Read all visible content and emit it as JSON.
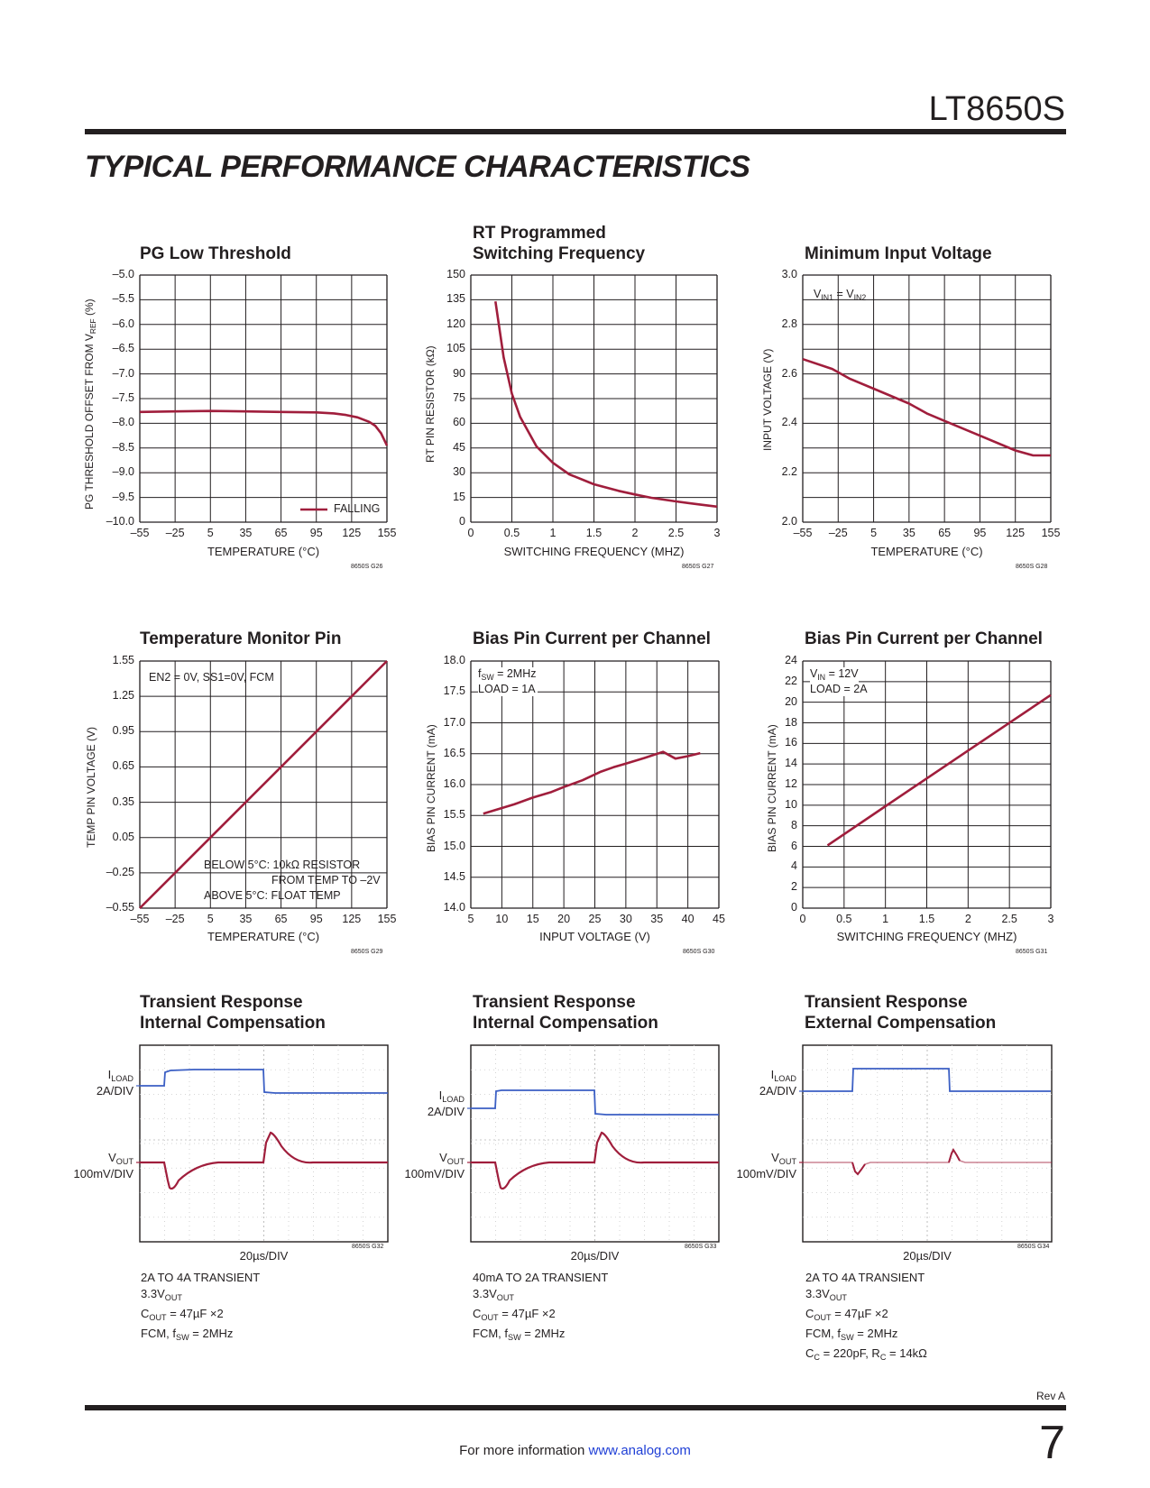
{
  "header": {
    "part_number": "LT8650S",
    "section_title": "TYPICAL PERFORMANCE CHARACTERISTICS"
  },
  "footer": {
    "rev": "Rev A",
    "page_number": "7",
    "more_info": "For more information",
    "link": "www.analog.com"
  },
  "colors": {
    "curve": "#a01e3c",
    "ch1": "#3b5fc4",
    "ch2": "#a01e3c",
    "grid": "#231f20"
  },
  "chart_data": [
    {
      "id": "g26",
      "type": "line",
      "title": "PG Low Threshold",
      "code": "8650S G26",
      "xlabel": "TEMPERATURE (°C)",
      "ylabel": "PG THRESHOLD OFFSET FROM  VREF (%)",
      "xlim": [
        -55,
        155
      ],
      "ylim": [
        -10.0,
        -5.0
      ],
      "xticks": [
        "–55",
        "–25",
        "5",
        "35",
        "65",
        "95",
        "125",
        "155"
      ],
      "yticks": [
        "–5.0",
        "–5.5",
        "–6.0",
        "–6.5",
        "–7.0",
        "–7.5",
        "–8.0",
        "–8.5",
        "–9.0",
        "–9.5",
        "–10.0"
      ],
      "legend": "FALLING",
      "series": [
        {
          "name": "FALLING",
          "x": [
            -55,
            -25,
            5,
            35,
            65,
            95,
            110,
            120,
            130,
            140,
            145,
            150,
            155
          ],
          "y": [
            -7.77,
            -7.76,
            -7.75,
            -7.76,
            -7.77,
            -7.78,
            -7.8,
            -7.83,
            -7.88,
            -7.97,
            -8.05,
            -8.2,
            -8.45
          ]
        }
      ]
    },
    {
      "id": "g27",
      "type": "line",
      "title": "RT Programmed Switching Frequency",
      "code": "8650S G27",
      "xlabel": "SWITCHING FREQUENCY (MHZ)",
      "ylabel": "RT PIN RESISTOR (kΩ)",
      "xlim": [
        0,
        3
      ],
      "ylim": [
        0,
        150
      ],
      "xticks": [
        "0",
        "0.5",
        "1",
        "1.5",
        "2",
        "2.5",
        "3"
      ],
      "yticks": [
        "150",
        "135",
        "120",
        "105",
        "90",
        "75",
        "60",
        "45",
        "30",
        "15",
        "0"
      ],
      "series": [
        {
          "name": "RT",
          "x": [
            0.3,
            0.4,
            0.5,
            0.6,
            0.8,
            1.0,
            1.2,
            1.5,
            1.8,
            2.0,
            2.2,
            2.5,
            2.8,
            3.0
          ],
          "y": [
            134,
            100,
            78,
            64,
            46,
            36,
            29,
            23,
            19,
            16.8,
            14.8,
            12.6,
            10.6,
            9.4
          ]
        }
      ]
    },
    {
      "id": "g28",
      "type": "line",
      "title": "Minimum Input Voltage",
      "code": "8650S G28",
      "xlabel": "TEMPERATURE (°C)",
      "ylabel": "INPUT VOLTAGE (V)",
      "xlim": [
        -55,
        155
      ],
      "ylim": [
        2.0,
        3.0
      ],
      "xticks": [
        "–55",
        "–25",
        "5",
        "35",
        "65",
        "95",
        "125",
        "155"
      ],
      "yticks": [
        "3.0",
        "2.8",
        "2.6",
        "2.4",
        "2.2",
        "2.0"
      ],
      "annotation": "VIN1 = VIN2",
      "series": [
        {
          "name": "VIN",
          "x": [
            -55,
            -30,
            -15,
            5,
            35,
            50,
            65,
            95,
            125,
            140,
            155
          ],
          "y": [
            2.66,
            2.62,
            2.58,
            2.54,
            2.48,
            2.44,
            2.41,
            2.35,
            2.29,
            2.27,
            2.27
          ]
        }
      ]
    },
    {
      "id": "g29",
      "type": "line",
      "title": "Temperature Monitor Pin",
      "code": "8650S G29",
      "xlabel": "TEMPERATURE (°C)",
      "ylabel": "TEMP PIN VOLTAGE (V)",
      "xlim": [
        -55,
        155
      ],
      "ylim": [
        -0.55,
        1.55
      ],
      "xticks": [
        "–55",
        "–25",
        "5",
        "35",
        "65",
        "95",
        "125",
        "155"
      ],
      "yticks": [
        "1.55",
        "1.25",
        "0.95",
        "0.65",
        "0.35",
        "0.05",
        "–0.25",
        "–0.55"
      ],
      "annotation_top": "EN2 = 0V, SS1=0V, FCM",
      "annotation_lines": [
        "BELOW 5°C: 10kΩ RESISTOR",
        "FROM TEMP TO –2V",
        "ABOVE 5°C:  FLOAT TEMP"
      ],
      "series": [
        {
          "name": "TEMP",
          "x": [
            -55,
            -30,
            -15,
            5,
            155
          ],
          "y": [
            -0.55,
            -0.3,
            -0.15,
            0.05,
            1.55
          ]
        }
      ]
    },
    {
      "id": "g30",
      "type": "line",
      "title": "Bias Pin Current per Channel",
      "code": "8650S G30",
      "xlabel": "INPUT VOLTAGE (V)",
      "ylabel": "BIAS PIN CURRENT  (mA)",
      "xlim": [
        5,
        45
      ],
      "ylim": [
        14.0,
        18.0
      ],
      "xticks": [
        "5",
        "10",
        "15",
        "20",
        "25",
        "30",
        "35",
        "40",
        "45"
      ],
      "yticks": [
        "18.0",
        "17.5",
        "17.0",
        "16.5",
        "16.0",
        "15.5",
        "15.0",
        "14.5",
        "14.0"
      ],
      "annotation_lines": [
        "fSW = 2MHz",
        "LOAD = 1A"
      ],
      "series": [
        {
          "name": "IBIAS",
          "x": [
            7,
            12,
            15,
            18,
            20,
            23,
            26,
            28,
            30,
            33,
            36,
            38,
            40,
            42
          ],
          "y": [
            15.53,
            15.68,
            15.79,
            15.88,
            15.96,
            16.07,
            16.21,
            16.28,
            16.34,
            16.43,
            16.53,
            16.42,
            16.46,
            16.51
          ]
        }
      ]
    },
    {
      "id": "g31",
      "type": "line",
      "title": "Bias Pin Current per Channel",
      "code": "8650S G31",
      "xlabel": "SWITCHING FREQUENCY (MHZ)",
      "ylabel": "BIAS PIN CURRENT  (mA)",
      "xlim": [
        0,
        3
      ],
      "ylim": [
        0,
        24
      ],
      "xticks": [
        "0",
        "0.5",
        "1",
        "1.5",
        "2",
        "2.5",
        "3"
      ],
      "yticks": [
        "24",
        "22",
        "20",
        "18",
        "16",
        "14",
        "12",
        "10",
        "8",
        "6",
        "4",
        "2",
        "0"
      ],
      "annotation_lines": [
        "VIN = 12V",
        "LOAD = 2A"
      ],
      "series": [
        {
          "name": "IBIAS",
          "x": [
            0.3,
            1.0,
            2.0,
            3.0
          ],
          "y": [
            6.1,
            9.9,
            15.3,
            20.7
          ]
        }
      ]
    },
    {
      "id": "g32",
      "type": "line",
      "title": "Transient Response Internal Compensation",
      "code": "8650S G32",
      "xlabel": "20µs/DIV",
      "ch1_label": "ILOAD\n2A/DIV",
      "ch2_label": "VOUT\n100mV/DIV",
      "conditions": [
        "2A TO 4A TRANSIENT",
        "3.3VOUT",
        "COUT = 47µF ×2",
        "FCM, fSW = 2MHz"
      ],
      "xlim": [
        0,
        10
      ],
      "ylim": [
        0,
        8
      ]
    },
    {
      "id": "g33",
      "type": "line",
      "title": "Transient Response Internal Compensation",
      "code": "8650S G33",
      "xlabel": "20µs/DIV",
      "ch1_label": "ILOAD\n2A/DIV",
      "ch2_label": "VOUT\n100mV/DIV",
      "conditions": [
        "40mA TO 2A TRANSIENT",
        "3.3VOUT",
        "COUT = 47µF ×2",
        "FCM, fSW = 2MHz"
      ],
      "xlim": [
        0,
        10
      ],
      "ylim": [
        0,
        8
      ]
    },
    {
      "id": "g34",
      "type": "line",
      "title": "Transient Response External Compensation",
      "code": "8650S G34",
      "xlabel": "20µs/DIV",
      "ch1_label": "ILOAD\n2A/DIV",
      "ch2_label": "VOUT\n100mV/DIV",
      "conditions": [
        "2A TO 4A TRANSIENT",
        "3.3VOUT",
        "COUT = 47µF ×2",
        "FCM, fSW = 2MHz",
        "CC = 220pF, RC = 14kΩ"
      ],
      "xlim": [
        0,
        10
      ],
      "ylim": [
        0,
        8
      ]
    }
  ]
}
